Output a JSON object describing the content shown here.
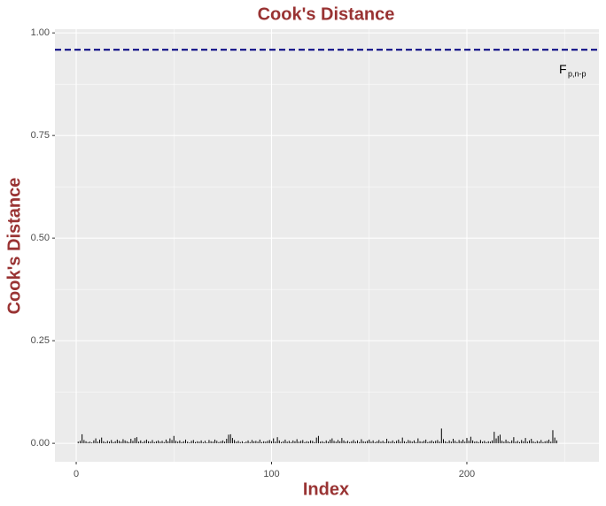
{
  "chart_data": {
    "type": "bar",
    "title": "Cook's Distance",
    "x_label": "Index",
    "y_label": "Cook's Distance",
    "x": [
      1,
      2,
      3,
      4,
      5,
      6,
      7,
      8,
      9,
      10,
      11,
      12,
      13,
      14,
      15,
      16,
      17,
      18,
      19,
      20,
      21,
      22,
      23,
      24,
      25,
      26,
      27,
      28,
      29,
      30,
      31,
      32,
      33,
      34,
      35,
      36,
      37,
      38,
      39,
      40,
      41,
      42,
      43,
      44,
      45,
      46,
      47,
      48,
      49,
      50,
      51,
      52,
      53,
      54,
      55,
      56,
      57,
      58,
      59,
      60,
      61,
      62,
      63,
      64,
      65,
      66,
      67,
      68,
      69,
      70,
      71,
      72,
      73,
      74,
      75,
      76,
      77,
      78,
      79,
      80,
      81,
      82,
      83,
      84,
      85,
      86,
      87,
      88,
      89,
      90,
      91,
      92,
      93,
      94,
      95,
      96,
      97,
      98,
      99,
      100,
      101,
      102,
      103,
      104,
      105,
      106,
      107,
      108,
      109,
      110,
      111,
      112,
      113,
      114,
      115,
      116,
      117,
      118,
      119,
      120,
      121,
      122,
      123,
      124,
      125,
      126,
      127,
      128,
      129,
      130,
      131,
      132,
      133,
      134,
      135,
      136,
      137,
      138,
      139,
      140,
      141,
      142,
      143,
      144,
      145,
      146,
      147,
      148,
      149,
      150,
      151,
      152,
      153,
      154,
      155,
      156,
      157,
      158,
      159,
      160,
      161,
      162,
      163,
      164,
      165,
      166,
      167,
      168,
      169,
      170,
      171,
      172,
      173,
      174,
      175,
      176,
      177,
      178,
      179,
      180,
      181,
      182,
      183,
      184,
      185,
      186,
      187,
      188,
      189,
      190,
      191,
      192,
      193,
      194,
      195,
      196,
      197,
      198,
      199,
      200,
      201,
      202,
      203,
      204,
      205,
      206,
      207,
      208,
      209,
      210,
      211,
      212,
      213,
      214,
      215,
      216,
      217,
      218,
      219,
      220,
      221,
      222,
      223,
      224,
      225,
      226,
      227,
      228,
      229,
      230,
      231,
      232,
      233,
      234,
      235,
      236,
      237,
      238,
      239,
      240,
      241,
      242,
      243,
      244,
      245,
      246
    ],
    "values": [
      0.004,
      0.006,
      0.022,
      0.008,
      0.005,
      0.003,
      0.004,
      0.002,
      0.007,
      0.012,
      0.004,
      0.009,
      0.014,
      0.005,
      0.003,
      0.006,
      0.004,
      0.008,
      0.003,
      0.005,
      0.009,
      0.006,
      0.004,
      0.01,
      0.007,
      0.005,
      0.003,
      0.011,
      0.006,
      0.013,
      0.015,
      0.004,
      0.007,
      0.003,
      0.006,
      0.009,
      0.005,
      0.004,
      0.008,
      0.003,
      0.005,
      0.007,
      0.004,
      0.006,
      0.003,
      0.009,
      0.005,
      0.012,
      0.008,
      0.018,
      0.006,
      0.004,
      0.007,
      0.003,
      0.005,
      0.009,
      0.004,
      0.002,
      0.006,
      0.008,
      0.003,
      0.005,
      0.004,
      0.007,
      0.003,
      0.006,
      0.002,
      0.008,
      0.005,
      0.004,
      0.009,
      0.006,
      0.003,
      0.005,
      0.007,
      0.004,
      0.011,
      0.021,
      0.022,
      0.013,
      0.008,
      0.004,
      0.006,
      0.003,
      0.005,
      0.002,
      0.004,
      0.007,
      0.003,
      0.008,
      0.005,
      0.006,
      0.004,
      0.009,
      0.003,
      0.005,
      0.004,
      0.006,
      0.008,
      0.005,
      0.012,
      0.004,
      0.015,
      0.007,
      0.003,
      0.005,
      0.009,
      0.004,
      0.006,
      0.003,
      0.007,
      0.005,
      0.01,
      0.004,
      0.006,
      0.008,
      0.003,
      0.005,
      0.004,
      0.007,
      0.006,
      0.003,
      0.014,
      0.018,
      0.004,
      0.005,
      0.003,
      0.007,
      0.004,
      0.009,
      0.012,
      0.006,
      0.004,
      0.008,
      0.005,
      0.013,
      0.007,
      0.004,
      0.006,
      0.003,
      0.005,
      0.008,
      0.004,
      0.007,
      0.003,
      0.01,
      0.005,
      0.004,
      0.006,
      0.009,
      0.004,
      0.007,
      0.003,
      0.005,
      0.008,
      0.004,
      0.006,
      0.003,
      0.011,
      0.005,
      0.004,
      0.007,
      0.003,
      0.006,
      0.009,
      0.004,
      0.014,
      0.005,
      0.003,
      0.008,
      0.006,
      0.004,
      0.007,
      0.003,
      0.012,
      0.005,
      0.004,
      0.006,
      0.009,
      0.003,
      0.005,
      0.007,
      0.004,
      0.006,
      0.008,
      0.004,
      0.036,
      0.01,
      0.005,
      0.003,
      0.007,
      0.004,
      0.011,
      0.006,
      0.003,
      0.008,
      0.005,
      0.009,
      0.004,
      0.013,
      0.006,
      0.016,
      0.007,
      0.004,
      0.005,
      0.003,
      0.008,
      0.004,
      0.006,
      0.003,
      0.005,
      0.004,
      0.007,
      0.028,
      0.012,
      0.018,
      0.021,
      0.006,
      0.004,
      0.009,
      0.005,
      0.003,
      0.007,
      0.015,
      0.004,
      0.006,
      0.003,
      0.008,
      0.005,
      0.013,
      0.004,
      0.007,
      0.011,
      0.005,
      0.003,
      0.006,
      0.004,
      0.008,
      0.003,
      0.005,
      0.006,
      0.009,
      0.004,
      0.032,
      0.014,
      0.007
    ],
    "color": "#000000",
    "xlim": [
      -10.9,
      267.6
    ],
    "xticks": [
      0,
      100,
      200
    ],
    "ylim": [
      -0.045,
      1.009
    ],
    "yticks": [
      {
        "value": 0,
        "label": "0.00"
      },
      {
        "value": 0.25,
        "label": "0.25"
      },
      {
        "value": 0.5,
        "label": "0.50"
      },
      {
        "value": 0.75,
        "label": "0.75"
      },
      {
        "value": 1,
        "label": "1.00"
      }
    ],
    "grid": true,
    "threshold": 0.959,
    "threshold_color": "#000080",
    "threshold_label": "F",
    "threshold_label_sub": "p,n-p"
  }
}
